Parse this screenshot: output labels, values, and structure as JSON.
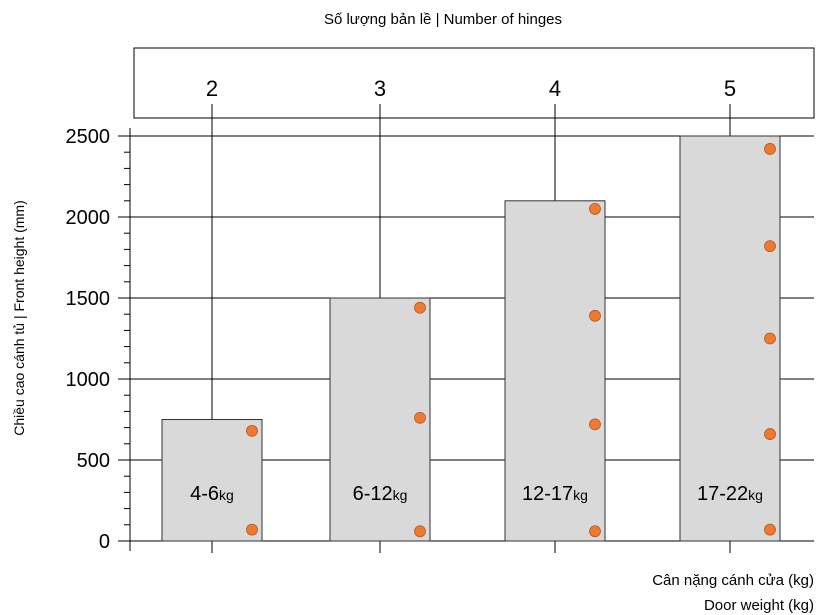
{
  "chart_data": {
    "type": "bar",
    "title": "Số lượng bản lề | Number of hinges",
    "ylabel": "Chiều cao cánh tủ | Front height (mm)",
    "xlabel_lines": [
      "Cân nặng cánh cửa (kg)",
      "Door weight (kg)"
    ],
    "ylim": [
      0,
      2500
    ],
    "yticks": [
      "0",
      "500",
      "1000",
      "1500",
      "2000",
      "2500"
    ],
    "grid": true,
    "categories": [
      {
        "range": "4-6",
        "unit": "kg"
      },
      {
        "range": "6-12",
        "unit": "kg"
      },
      {
        "range": "12-17",
        "unit": "kg"
      },
      {
        "range": "17-22",
        "unit": "kg"
      }
    ],
    "values": [
      750,
      1500,
      2100,
      2500
    ],
    "hinge_counts": [
      "2",
      "3",
      "4",
      "5"
    ],
    "hinge_positions": [
      [
        680,
        70
      ],
      [
        1440,
        760,
        60
      ],
      [
        2050,
        1390,
        720,
        60
      ],
      [
        2420,
        1820,
        1250,
        660,
        70
      ]
    ],
    "colors": {
      "bar_fill": "#d9d9d9",
      "bar_stroke": "#333333",
      "hinge_dot": "#ed7a30",
      "hinge_dot_stroke": "#b25a1c",
      "grid": "#000000"
    }
  }
}
